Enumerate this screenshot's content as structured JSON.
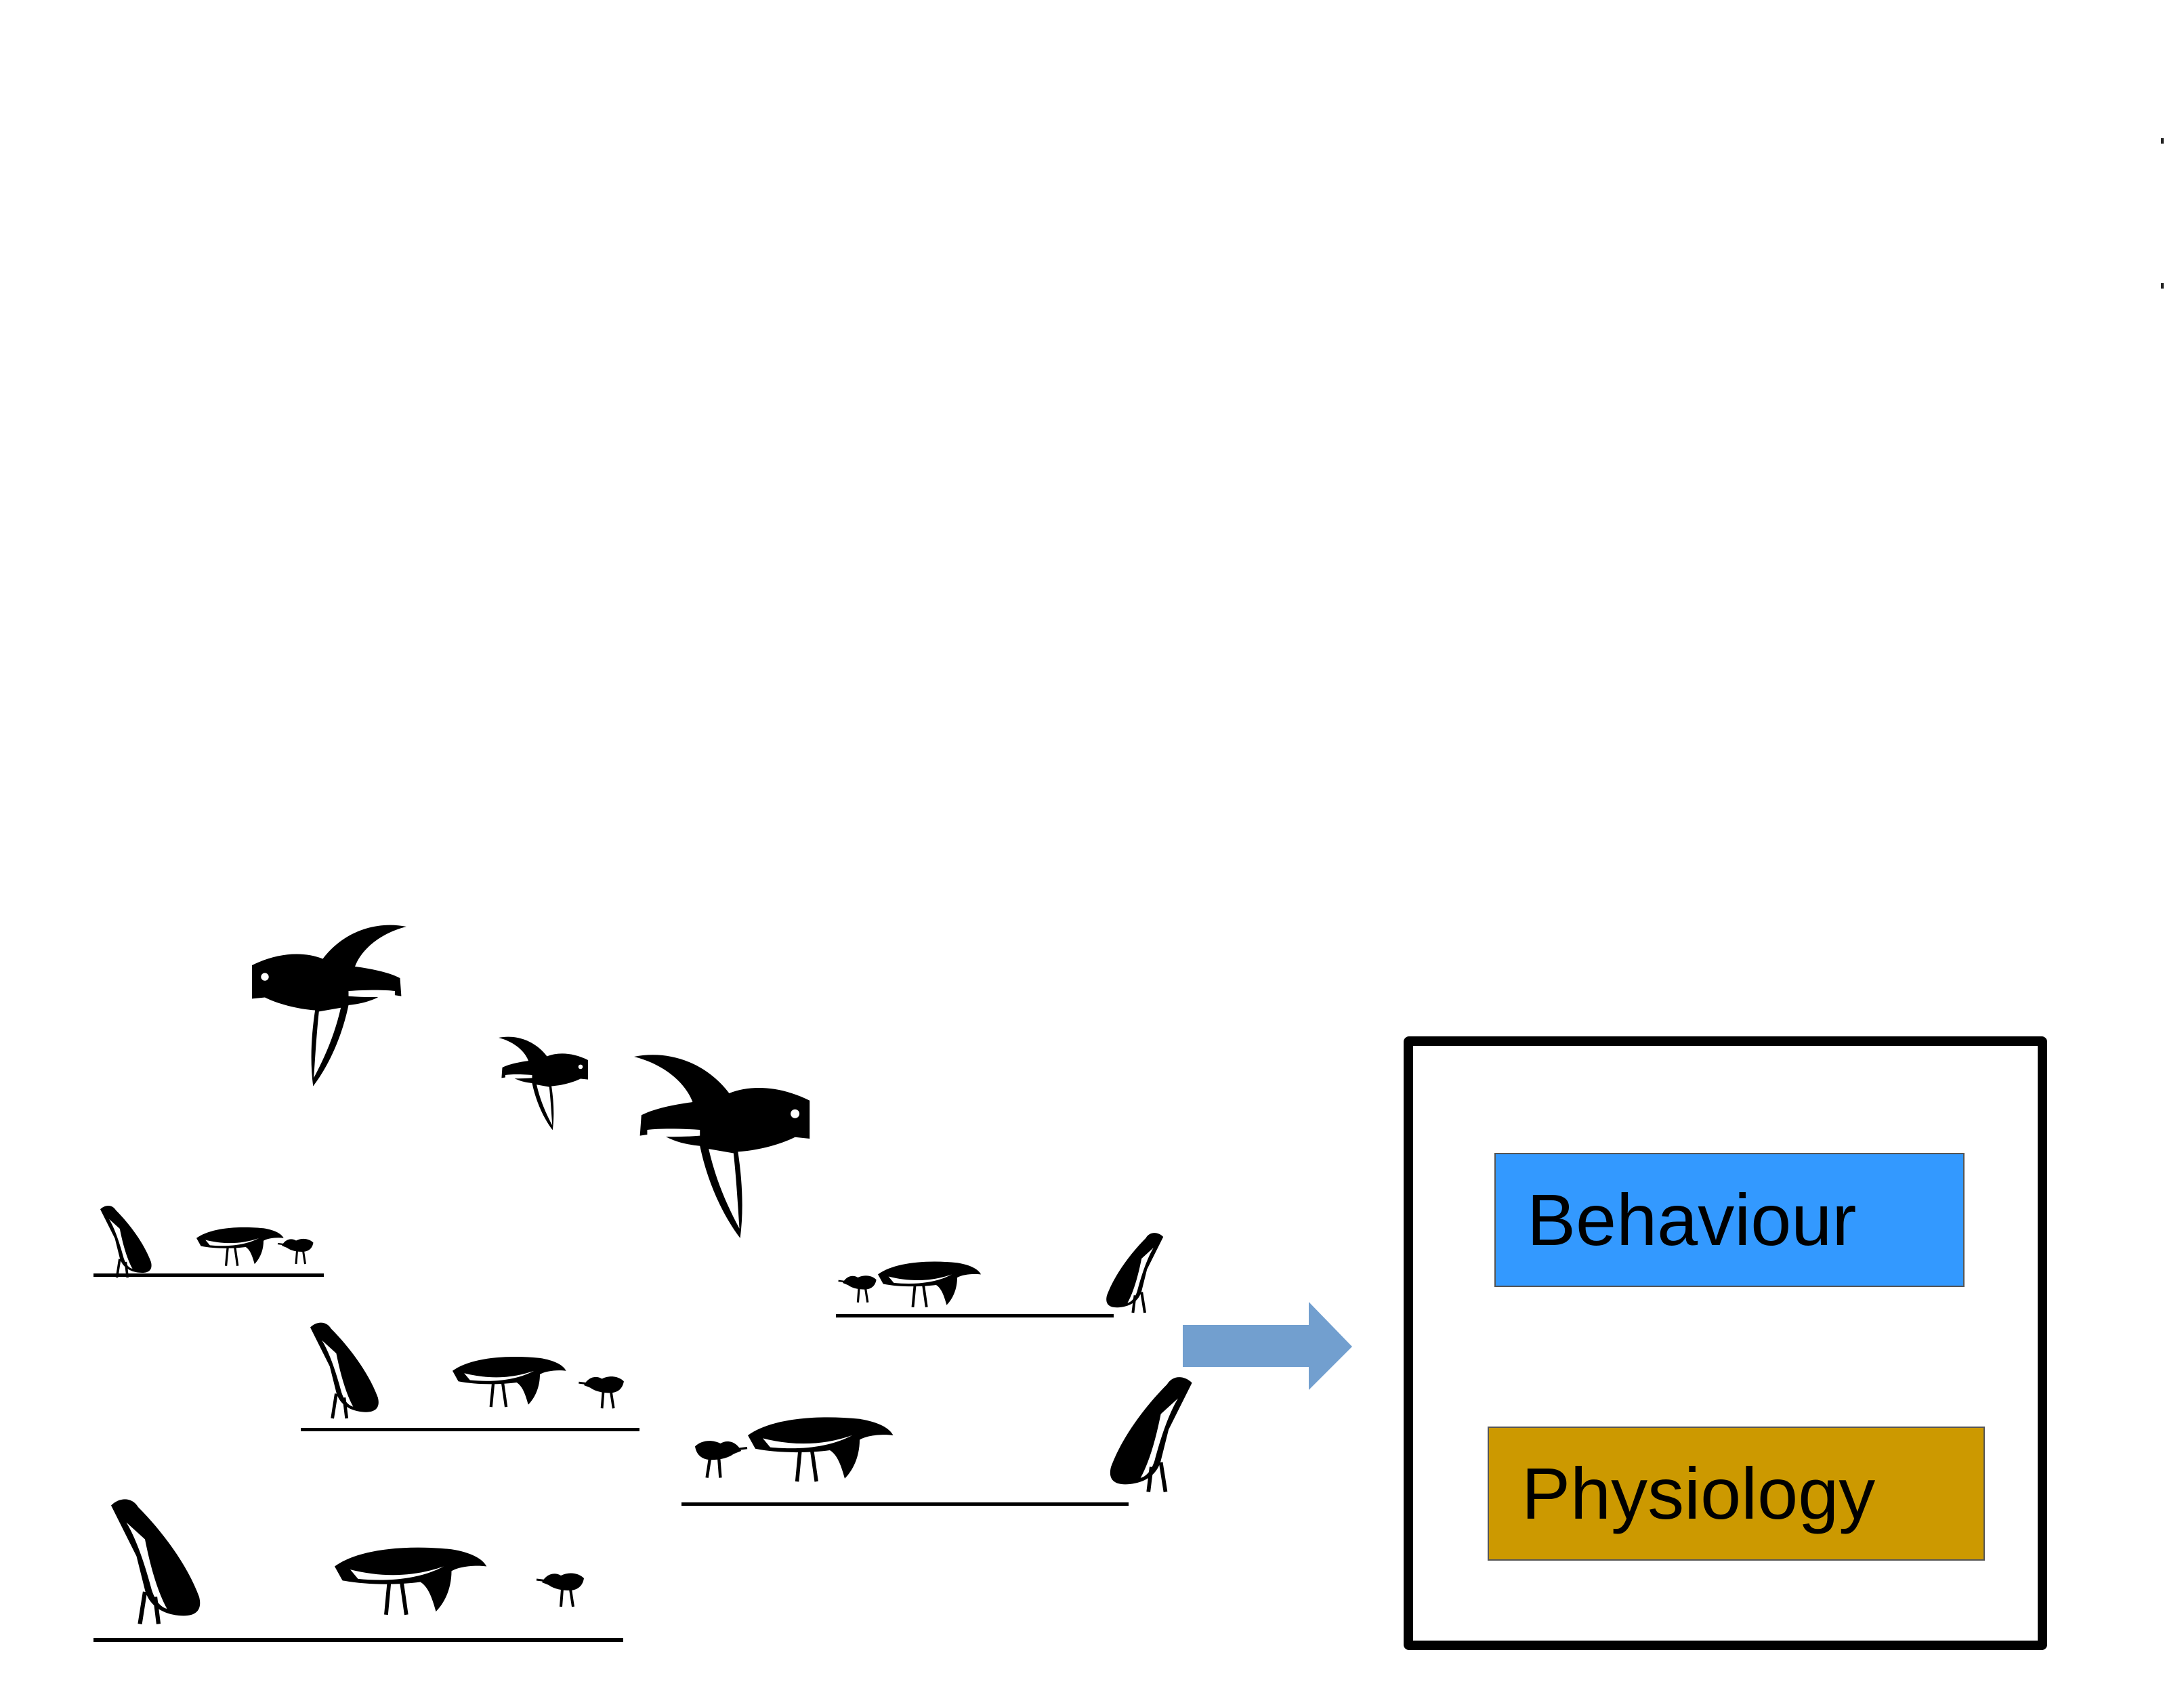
{
  "diagram": {
    "boxes": [
      {
        "key": "behaviour",
        "label": "Behaviour",
        "fill": "#3399ff"
      },
      {
        "key": "physiology",
        "label": "Physiology",
        "fill": "#cc9900"
      }
    ],
    "arrow": {
      "fill": "#729fcf",
      "direction": "right"
    },
    "outer_box": {
      "stroke": "#000000"
    },
    "illustration": {
      "icon": "oystercatcher-birds-illustration",
      "flying_birds": 3,
      "feeding_groups": 5
    }
  }
}
